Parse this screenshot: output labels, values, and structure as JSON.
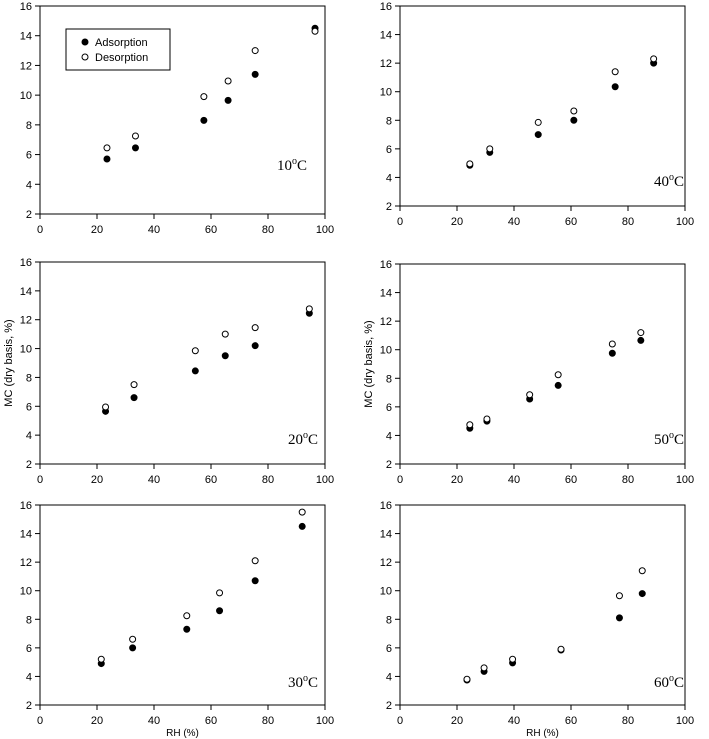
{
  "chart_data": [
    {
      "type": "scatter",
      "temperature_label": {
        "base": "10",
        "sup": "o",
        "unit": "C"
      },
      "xlim": [
        0,
        100
      ],
      "ylim": [
        2,
        16
      ],
      "xticks": [
        0,
        20,
        40,
        60,
        80,
        100
      ],
      "yticks": [
        2,
        4,
        6,
        8,
        10,
        12,
        14,
        16
      ],
      "xlabel": "",
      "ylabel": "",
      "legend": {
        "position": "top-left",
        "entries": [
          "Adsorption",
          "Desorption"
        ]
      },
      "series": [
        {
          "name": "Adsorption",
          "marker": "filled-circle",
          "x": [
            23.5,
            33.5,
            57.5,
            66,
            75.5,
            96.5
          ],
          "y": [
            5.7,
            6.45,
            8.3,
            9.65,
            11.4,
            14.5
          ]
        },
        {
          "name": "Desorption",
          "marker": "open-circle",
          "x": [
            23.5,
            33.5,
            57.5,
            66,
            75.5,
            96.5
          ],
          "y": [
            6.45,
            7.25,
            9.9,
            10.95,
            13.0,
            14.3
          ]
        }
      ]
    },
    {
      "type": "scatter",
      "temperature_label": {
        "base": "40",
        "sup": "o",
        "unit": "C"
      },
      "xlim": [
        0,
        100
      ],
      "ylim": [
        2,
        16
      ],
      "xticks": [
        0,
        20,
        40,
        60,
        80,
        100
      ],
      "yticks": [
        2,
        4,
        6,
        8,
        10,
        12,
        14,
        16
      ],
      "xlabel": "",
      "ylabel": "",
      "series": [
        {
          "name": "Adsorption",
          "marker": "filled-circle",
          "x": [
            24.5,
            31.5,
            48.5,
            61,
            75.5,
            89
          ],
          "y": [
            4.85,
            5.75,
            7.0,
            8.0,
            10.35,
            12.0
          ]
        },
        {
          "name": "Desorption",
          "marker": "open-circle",
          "x": [
            24.5,
            31.5,
            48.5,
            61,
            75.5,
            89
          ],
          "y": [
            4.95,
            6.0,
            7.85,
            8.65,
            11.4,
            12.3
          ]
        }
      ]
    },
    {
      "type": "scatter",
      "temperature_label": {
        "base": "20",
        "sup": "o",
        "unit": "C"
      },
      "xlim": [
        0,
        100
      ],
      "ylim": [
        2,
        16
      ],
      "xticks": [
        0,
        20,
        40,
        60,
        80,
        100
      ],
      "yticks": [
        2,
        4,
        6,
        8,
        10,
        12,
        14,
        16
      ],
      "xlabel": "",
      "ylabel": "MC (dry basis, %)",
      "series": [
        {
          "name": "Adsorption",
          "marker": "filled-circle",
          "x": [
            23,
            33,
            54.5,
            65,
            75.5,
            94.5
          ],
          "y": [
            5.65,
            6.6,
            8.45,
            9.5,
            10.2,
            12.45
          ]
        },
        {
          "name": "Desorption",
          "marker": "open-circle",
          "x": [
            23,
            33,
            54.5,
            65,
            75.5,
            94.5
          ],
          "y": [
            5.95,
            7.5,
            9.85,
            11.0,
            11.45,
            12.75
          ]
        }
      ]
    },
    {
      "type": "scatter",
      "temperature_label": {
        "base": "50",
        "sup": "o",
        "unit": "C"
      },
      "xlim": [
        0,
        100
      ],
      "ylim": [
        2,
        16
      ],
      "xticks": [
        0,
        20,
        40,
        60,
        80,
        100
      ],
      "yticks": [
        2,
        4,
        6,
        8,
        10,
        12,
        14,
        16
      ],
      "xlabel": "",
      "ylabel": "MC (dry basis, %)",
      "series": [
        {
          "name": "Adsorption",
          "marker": "filled-circle",
          "x": [
            24.5,
            30.5,
            45.5,
            55.5,
            74.5,
            84.5
          ],
          "y": [
            4.5,
            5.0,
            6.55,
            7.5,
            9.75,
            10.65
          ]
        },
        {
          "name": "Desorption",
          "marker": "open-circle",
          "x": [
            24.5,
            30.5,
            45.5,
            55.5,
            74.5,
            84.5
          ],
          "y": [
            4.75,
            5.15,
            6.85,
            8.25,
            10.4,
            11.2
          ]
        }
      ]
    },
    {
      "type": "scatter",
      "temperature_label": {
        "base": "30",
        "sup": "o",
        "unit": "C"
      },
      "xlim": [
        0,
        100
      ],
      "ylim": [
        2,
        16
      ],
      "xticks": [
        0,
        20,
        40,
        60,
        80,
        100
      ],
      "yticks": [
        2,
        4,
        6,
        8,
        10,
        12,
        14,
        16
      ],
      "xlabel": "RH (%)",
      "ylabel": "",
      "series": [
        {
          "name": "Adsorption",
          "marker": "filled-circle",
          "x": [
            21.5,
            32.5,
            51.5,
            63,
            75.5,
            92
          ],
          "y": [
            4.9,
            6.0,
            7.3,
            8.6,
            10.7,
            14.5
          ]
        },
        {
          "name": "Desorption",
          "marker": "open-circle",
          "x": [
            21.5,
            32.5,
            51.5,
            63,
            75.5,
            92
          ],
          "y": [
            5.2,
            6.6,
            8.25,
            9.85,
            12.1,
            15.5
          ]
        }
      ]
    },
    {
      "type": "scatter",
      "temperature_label": {
        "base": "60",
        "sup": "o",
        "unit": "C"
      },
      "xlim": [
        0,
        100
      ],
      "ylim": [
        2,
        16
      ],
      "xticks": [
        0,
        20,
        40,
        60,
        80,
        100
      ],
      "yticks": [
        2,
        4,
        6,
        8,
        10,
        12,
        14,
        16
      ],
      "xlabel": "RH (%)",
      "ylabel": "",
      "series": [
        {
          "name": "Adsorption",
          "marker": "filled-circle",
          "x": [
            23.5,
            29.5,
            39.5,
            56.5,
            77,
            85
          ],
          "y": [
            3.75,
            4.35,
            4.95,
            5.85,
            8.1,
            9.8
          ]
        },
        {
          "name": "Desorption",
          "marker": "open-circle",
          "x": [
            23.5,
            29.5,
            39.5,
            56.5,
            77,
            85
          ],
          "y": [
            3.8,
            4.6,
            5.2,
            5.9,
            9.65,
            11.4
          ]
        }
      ]
    }
  ]
}
